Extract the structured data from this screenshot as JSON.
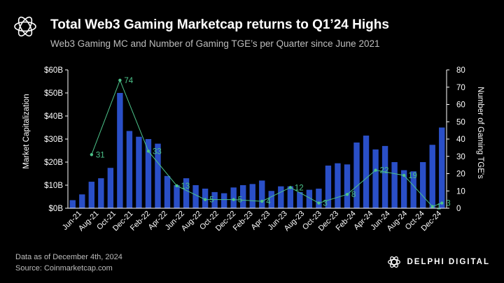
{
  "header": {
    "title": "Total Web3 Gaming Marketcap returns to Q1’24 Highs",
    "subtitle": "Web3 Gaming MC and Number of Gaming TGE’s per Quarter since June 2021"
  },
  "footer": {
    "note_date": "Data as of December 4th, 2024",
    "note_source": "Source: Coinmarketcap.com",
    "brand": "DELPHI DIGITAL"
  },
  "colors": {
    "bar": "#2A4FC7",
    "line": "#4CC38A",
    "axis_text": "#ffffff",
    "background": "#000000"
  },
  "chart_data": {
    "type": "bar+line",
    "title": "Total Web3 Gaming Marketcap returns to Q1’24 Highs",
    "ylabel_left": "Market Capitalization",
    "ylabel_right": "Number of Gaming TGE's",
    "left_axis": {
      "min": 0,
      "max": 60,
      "ticks": [
        0,
        10,
        20,
        30,
        40,
        50,
        60
      ],
      "tick_labels": [
        "$0B",
        "$10B",
        "$20B",
        "$30B",
        "$40B",
        "$50B",
        "$60B"
      ]
    },
    "right_axis": {
      "min": 0,
      "max": 80,
      "ticks": [
        0,
        10,
        20,
        30,
        40,
        50,
        60,
        70,
        80
      ],
      "tick_labels": [
        "0",
        "10",
        "20",
        "30",
        "40",
        "50",
        "60",
        "70",
        "80"
      ]
    },
    "x_tick_labels": [
      "Jun-21",
      "Aug-21",
      "Oct-21",
      "Dec-21",
      "Feb-22",
      "Apr-22",
      "Jun-22",
      "Aug-22",
      "Oct-22",
      "Dec-22",
      "Feb-23",
      "Apr-23",
      "Jun-23",
      "Aug-23",
      "Oct-23",
      "Dec-23",
      "Feb-24",
      "Apr-24",
      "Jun-24",
      "Aug-24",
      "Oct-24",
      "Dec-24"
    ],
    "bars": {
      "name": "Web3 Gaming MC ($B)",
      "values": [
        3.5,
        6,
        11.5,
        13,
        17.5,
        50,
        33.5,
        31,
        30,
        28,
        14,
        10,
        13,
        10,
        8.5,
        7,
        6.5,
        9,
        10,
        10.5,
        12,
        7.5,
        9.5,
        9.5,
        7,
        8,
        8.5,
        18.5,
        19.5,
        19,
        28.5,
        31.5,
        25.5,
        27,
        20,
        16.5,
        16,
        20,
        27.5,
        35
      ]
    },
    "line": {
      "name": "Number of Gaming TGE's",
      "points": [
        {
          "bar_index": 2,
          "value": 31,
          "label": "31"
        },
        {
          "bar_index": 5,
          "value": 74,
          "label": "74"
        },
        {
          "bar_index": 8,
          "value": 33,
          "label": "33"
        },
        {
          "bar_index": 11,
          "value": 13,
          "label": "13"
        },
        {
          "bar_index": 14,
          "value": 5,
          "label": "5"
        },
        {
          "bar_index": 17,
          "value": 5,
          "label": "5"
        },
        {
          "bar_index": 20,
          "value": 4,
          "label": "4"
        },
        {
          "bar_index": 23,
          "value": 12,
          "label": "12"
        },
        {
          "bar_index": 26,
          "value": 3,
          "label": "3"
        },
        {
          "bar_index": 29,
          "value": 8,
          "label": "8"
        },
        {
          "bar_index": 32,
          "value": 22,
          "label": "22"
        },
        {
          "bar_index": 35,
          "value": 19,
          "label": "19"
        },
        {
          "bar_index": 38,
          "value": 1,
          "label": "1"
        },
        {
          "bar_index": 39,
          "value": 3,
          "label": "3"
        }
      ]
    }
  }
}
